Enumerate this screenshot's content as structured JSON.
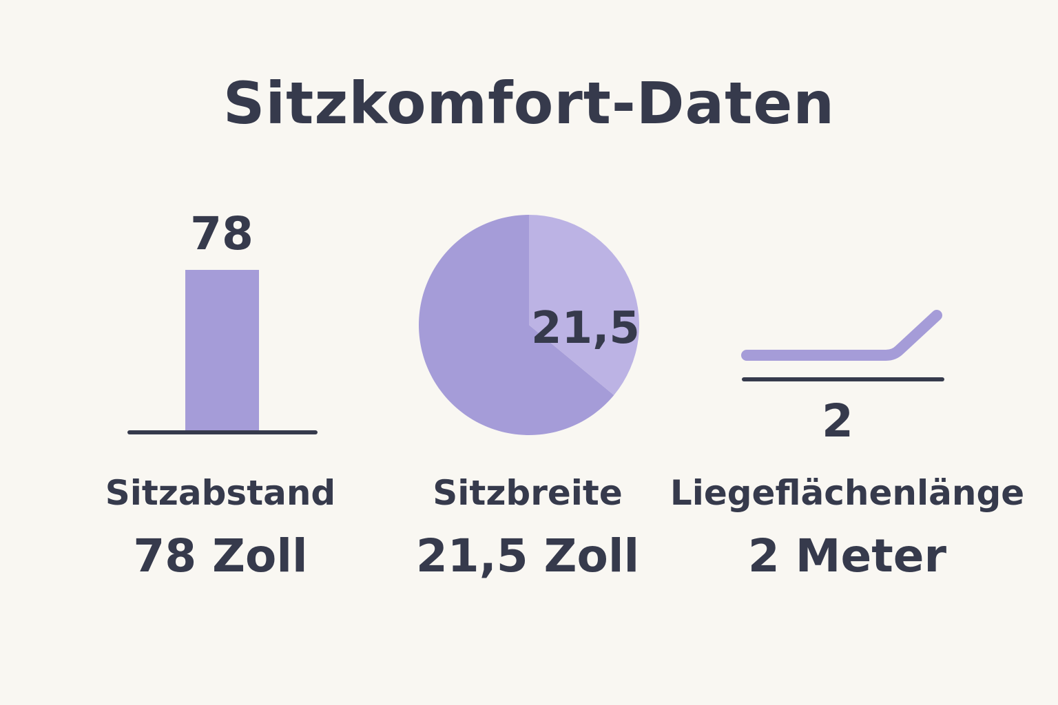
{
  "chart_data": [
    {
      "type": "bar",
      "name": "Sitzabstand",
      "categories": [
        "Sitzabstand"
      ],
      "values": [
        78
      ],
      "data_label": "78",
      "value_text": "78 Zoll",
      "color": "#a59cd8"
    },
    {
      "type": "pie",
      "name": "Sitzbreite",
      "slices": [
        {
          "label": "21,5",
          "fraction": 0.36,
          "color": "#bcb3e4"
        },
        {
          "fraction": 0.64,
          "color": "#a59cd8"
        }
      ],
      "data_label": "21,5",
      "value_text": "21,5 Zoll"
    },
    {
      "type": "icon-stat",
      "name": "Liegeflächenlänge",
      "icon": "flat-bed-icon",
      "data_label": "2",
      "value_text": "2 Meter",
      "color": "#a59cd8"
    }
  ],
  "header": {
    "title": "Sitzkomfort-Daten"
  },
  "stats": {
    "seat_pitch": {
      "label": "Sitzabstand",
      "value": "78 Zoll"
    },
    "seat_width": {
      "label": "Sitzbreite",
      "value": "21,5 Zoll"
    },
    "bed_length": {
      "label": "Liegeflächenlänge",
      "value": "2 Meter"
    }
  },
  "colors": {
    "background": "#f9f7f2",
    "text": "#363a4c",
    "accent": "#a59cd8",
    "accent_light": "#bcb3e4",
    "baseline": "#363a4c"
  }
}
